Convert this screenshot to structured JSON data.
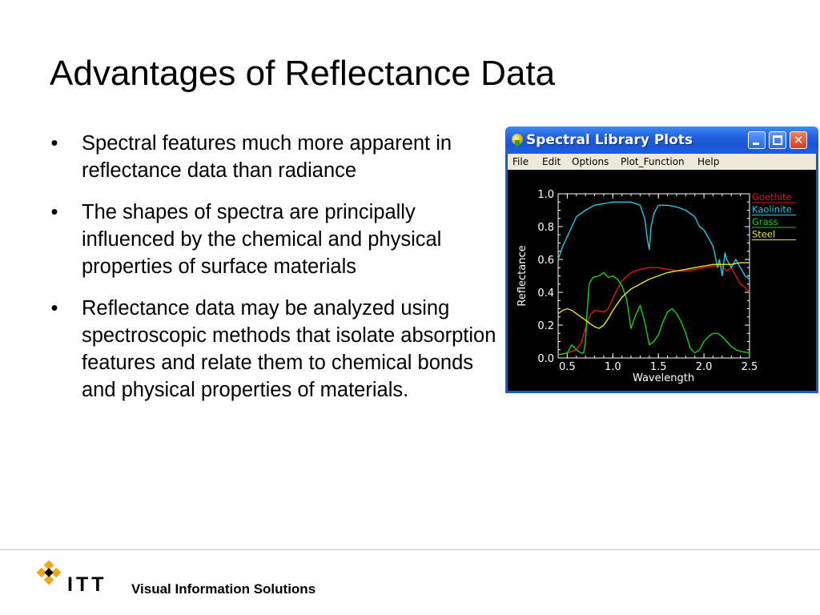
{
  "slide": {
    "title": "Advantages of Reflectance Data",
    "bullets": [
      "Spectral features much more apparent in reflectance data than radiance",
      "The shapes of spectra are principally influenced by the chemical and physical properties of surface materials",
      "Reflectance data may be analyzed using spectroscopic methods that isolate absorption features and relate them to chemical bonds and physical properties of materials."
    ],
    "bullet_symbol": "•"
  },
  "window": {
    "title": "Spectral Library Plots",
    "app_icon": "idl-globe-icon",
    "controls": {
      "minimize": "minimize-icon",
      "maximize": "maximize-icon",
      "close": "close-icon",
      "close_glyph": "✕"
    },
    "menu": [
      "File",
      "Edit",
      "Options",
      "Plot_Function",
      "Help"
    ]
  },
  "chart_data": {
    "type": "line",
    "xlabel": "Wavelength",
    "ylabel": "Reflectance",
    "xlim": [
      0.4,
      2.5
    ],
    "ylim": [
      0.0,
      1.0
    ],
    "xticks": [
      "0.5",
      "1.0",
      "1.5",
      "2.0",
      "2.5"
    ],
    "xtick_values": [
      0.5,
      1.0,
      1.5,
      2.0,
      2.5
    ],
    "yticks": [
      "0.0",
      "0.2",
      "0.4",
      "0.6",
      "0.8",
      "1.0"
    ],
    "ytick_values": [
      0.0,
      0.2,
      0.4,
      0.6,
      0.8,
      1.0
    ],
    "background": "#000000",
    "axis_color": "#ffffff",
    "legend_placement": "right",
    "series": [
      {
        "name": "Goethite",
        "color": "#e01818",
        "points": [
          [
            0.4,
            0.02
          ],
          [
            0.5,
            0.03
          ],
          [
            0.6,
            0.05
          ],
          [
            0.65,
            0.09
          ],
          [
            0.7,
            0.18
          ],
          [
            0.75,
            0.26
          ],
          [
            0.8,
            0.29
          ],
          [
            0.9,
            0.28
          ],
          [
            0.95,
            0.3
          ],
          [
            1.0,
            0.36
          ],
          [
            1.05,
            0.42
          ],
          [
            1.1,
            0.47
          ],
          [
            1.2,
            0.52
          ],
          [
            1.3,
            0.54
          ],
          [
            1.4,
            0.55
          ],
          [
            1.5,
            0.55
          ],
          [
            1.6,
            0.54
          ],
          [
            1.7,
            0.53
          ],
          [
            1.8,
            0.53
          ],
          [
            1.9,
            0.54
          ],
          [
            2.0,
            0.55
          ],
          [
            2.1,
            0.56
          ],
          [
            2.2,
            0.56
          ],
          [
            2.25,
            0.53
          ],
          [
            2.3,
            0.55
          ],
          [
            2.35,
            0.5
          ],
          [
            2.4,
            0.45
          ],
          [
            2.45,
            0.43
          ],
          [
            2.5,
            0.4
          ]
        ]
      },
      {
        "name": "Kaolinite",
        "color": "#22c8e8",
        "points": [
          [
            0.4,
            0.6
          ],
          [
            0.45,
            0.68
          ],
          [
            0.5,
            0.74
          ],
          [
            0.55,
            0.8
          ],
          [
            0.6,
            0.86
          ],
          [
            0.7,
            0.9
          ],
          [
            0.8,
            0.93
          ],
          [
            0.9,
            0.94
          ],
          [
            1.0,
            0.95
          ],
          [
            1.1,
            0.95
          ],
          [
            1.2,
            0.95
          ],
          [
            1.3,
            0.93
          ],
          [
            1.35,
            0.85
          ],
          [
            1.38,
            0.72
          ],
          [
            1.4,
            0.66
          ],
          [
            1.42,
            0.8
          ],
          [
            1.45,
            0.88
          ],
          [
            1.5,
            0.93
          ],
          [
            1.6,
            0.93
          ],
          [
            1.7,
            0.92
          ],
          [
            1.8,
            0.9
          ],
          [
            1.9,
            0.86
          ],
          [
            1.95,
            0.8
          ],
          [
            2.0,
            0.78
          ],
          [
            2.1,
            0.68
          ],
          [
            2.15,
            0.55
          ],
          [
            2.17,
            0.6
          ],
          [
            2.2,
            0.5
          ],
          [
            2.23,
            0.64
          ],
          [
            2.25,
            0.6
          ],
          [
            2.3,
            0.55
          ],
          [
            2.35,
            0.6
          ],
          [
            2.4,
            0.55
          ],
          [
            2.45,
            0.5
          ],
          [
            2.5,
            0.48
          ]
        ]
      },
      {
        "name": "Grass",
        "color": "#18d018",
        "points": [
          [
            0.4,
            0.02
          ],
          [
            0.5,
            0.03
          ],
          [
            0.55,
            0.08
          ],
          [
            0.6,
            0.05
          ],
          [
            0.65,
            0.03
          ],
          [
            0.68,
            0.03
          ],
          [
            0.7,
            0.1
          ],
          [
            0.72,
            0.3
          ],
          [
            0.74,
            0.45
          ],
          [
            0.78,
            0.49
          ],
          [
            0.85,
            0.5
          ],
          [
            0.9,
            0.52
          ],
          [
            0.95,
            0.49
          ],
          [
            1.0,
            0.5
          ],
          [
            1.05,
            0.48
          ],
          [
            1.1,
            0.44
          ],
          [
            1.15,
            0.36
          ],
          [
            1.2,
            0.18
          ],
          [
            1.25,
            0.26
          ],
          [
            1.3,
            0.32
          ],
          [
            1.35,
            0.22
          ],
          [
            1.4,
            0.08
          ],
          [
            1.45,
            0.1
          ],
          [
            1.5,
            0.14
          ],
          [
            1.55,
            0.22
          ],
          [
            1.6,
            0.28
          ],
          [
            1.65,
            0.3
          ],
          [
            1.7,
            0.27
          ],
          [
            1.75,
            0.22
          ],
          [
            1.8,
            0.15
          ],
          [
            1.85,
            0.06
          ],
          [
            1.9,
            0.03
          ],
          [
            1.95,
            0.05
          ],
          [
            2.0,
            0.1
          ],
          [
            2.05,
            0.13
          ],
          [
            2.1,
            0.15
          ],
          [
            2.15,
            0.15
          ],
          [
            2.2,
            0.13
          ],
          [
            2.25,
            0.1
          ],
          [
            2.3,
            0.07
          ],
          [
            2.35,
            0.05
          ],
          [
            2.4,
            0.04
          ],
          [
            2.5,
            0.03
          ]
        ]
      },
      {
        "name": "Steel",
        "color": "#e6e62a",
        "points": [
          [
            0.4,
            0.27
          ],
          [
            0.45,
            0.29
          ],
          [
            0.5,
            0.3
          ],
          [
            0.55,
            0.29
          ],
          [
            0.6,
            0.27
          ],
          [
            0.65,
            0.25
          ],
          [
            0.7,
            0.23
          ],
          [
            0.75,
            0.21
          ],
          [
            0.8,
            0.19
          ],
          [
            0.85,
            0.18
          ],
          [
            0.9,
            0.2
          ],
          [
            0.95,
            0.24
          ],
          [
            1.0,
            0.29
          ],
          [
            1.05,
            0.33
          ],
          [
            1.1,
            0.37
          ],
          [
            1.2,
            0.42
          ],
          [
            1.3,
            0.45
          ],
          [
            1.4,
            0.48
          ],
          [
            1.5,
            0.5
          ],
          [
            1.6,
            0.52
          ],
          [
            1.7,
            0.53
          ],
          [
            1.8,
            0.54
          ],
          [
            1.9,
            0.55
          ],
          [
            2.0,
            0.56
          ],
          [
            2.1,
            0.57
          ],
          [
            2.2,
            0.57
          ],
          [
            2.3,
            0.57
          ],
          [
            2.4,
            0.58
          ],
          [
            2.5,
            0.58
          ]
        ]
      }
    ]
  },
  "footer": {
    "logo_text": "ITT",
    "logo_icon": "itt-diamond-logo-icon",
    "tagline": "Visual Information Solutions",
    "logo_colors": [
      "#f2a71b",
      "#000000"
    ]
  }
}
